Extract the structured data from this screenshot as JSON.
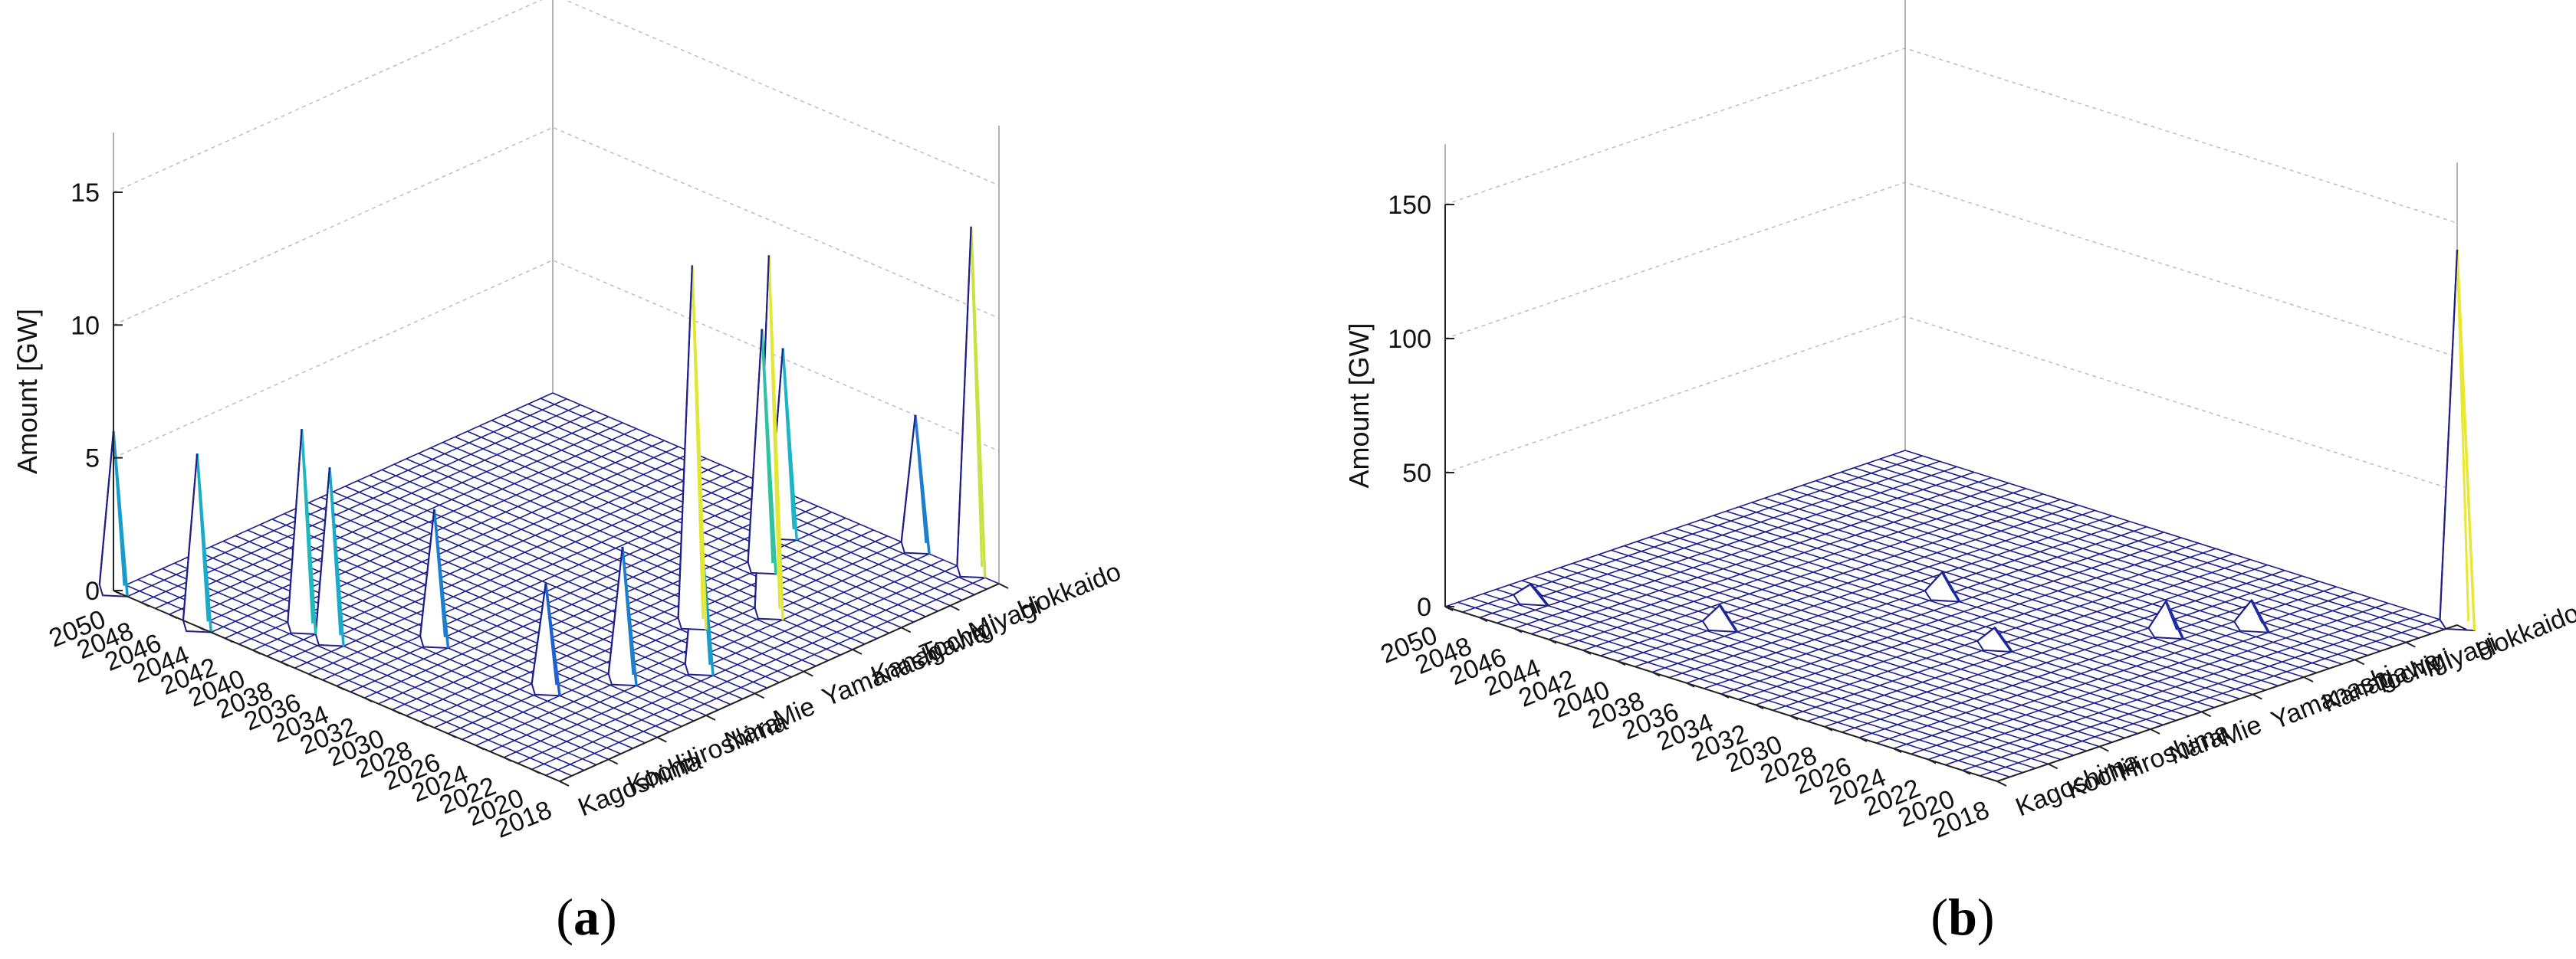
{
  "figure": {
    "panel_labels": [
      {
        "open": "(",
        "letter": "a",
        "close": ")"
      },
      {
        "open": "(",
        "letter": "b",
        "close": ")"
      }
    ]
  },
  "chart_data": [
    {
      "type": "surface3d",
      "panel": "a",
      "zlabel": "Amount [GW]",
      "zlim": [
        0,
        15
      ],
      "zticks": [
        0,
        5,
        10,
        15
      ],
      "x_ticks": [
        2018,
        2020,
        2022,
        2024,
        2026,
        2028,
        2030,
        2032,
        2034,
        2036,
        2038,
        2040,
        2042,
        2044,
        2046,
        2048,
        2050
      ],
      "y_ticks": [
        "Kagoshima",
        "Kochi",
        "Hiroshima",
        "Nara",
        "Mie",
        "Yamanashi",
        "Kanagawa",
        "Tochigi",
        "Miyagi",
        "Hokkaido"
      ],
      "grid": true,
      "colormap_colors": [
        "#1a1a8a",
        "#1f4fd0",
        "#19b4c8",
        "#3cc88c",
        "#e8e832"
      ],
      "peaks_estimated": [
        {
          "year": 2050,
          "region": "Kagoshima",
          "value": 6
        },
        {
          "year": 2044,
          "region": "Kagoshima",
          "value": 6.5
        },
        {
          "year": 2040,
          "region": "Kochi",
          "value": 7.5
        },
        {
          "year": 2038,
          "region": "Kochi",
          "value": 6.5
        },
        {
          "year": 2034,
          "region": "Hiroshima",
          "value": 5
        },
        {
          "year": 2026,
          "region": "Hiroshima",
          "value": 4
        },
        {
          "year": 2024,
          "region": "Nara",
          "value": 5
        },
        {
          "year": 2022,
          "region": "Mie",
          "value": 6
        },
        {
          "year": 2026,
          "region": "Yamanashi",
          "value": 13.5
        },
        {
          "year": 2024,
          "region": "Kanagawa",
          "value": 13.5
        },
        {
          "year": 2028,
          "region": "Tochigi",
          "value": 9
        },
        {
          "year": 2030,
          "region": "Miyagi",
          "value": 7
        },
        {
          "year": 2020,
          "region": "Hokkaido",
          "value": 13
        },
        {
          "year": 2024,
          "region": "Hokkaido",
          "value": 5
        }
      ]
    },
    {
      "type": "surface3d",
      "panel": "b",
      "zlabel": "Amount [GW]",
      "zlim": [
        0,
        150
      ],
      "zticks": [
        0,
        50,
        100,
        150
      ],
      "x_ticks": [
        2018,
        2020,
        2022,
        2024,
        2026,
        2028,
        2030,
        2032,
        2034,
        2036,
        2038,
        2040,
        2042,
        2044,
        2046,
        2048,
        2050
      ],
      "y_ticks": [
        "Kagoshima",
        "Kochi",
        "Hiroshima",
        "Nara",
        "Mie",
        "Yamanashi",
        "Kanagawa",
        "Tochigi",
        "Miyagi",
        "Hokkaido"
      ],
      "grid": true,
      "colormap_colors": [
        "#1a1a8a",
        "#1f4fd0",
        "#19b4c8",
        "#3cc88c",
        "#e8e832"
      ],
      "peaks_estimated": [
        {
          "year": 2018,
          "region": "Hokkaido",
          "value": 140
        },
        {
          "year": 2026,
          "region": "Kanagawa",
          "value": 12
        },
        {
          "year": 2024,
          "region": "Tochigi",
          "value": 10
        },
        {
          "year": 2040,
          "region": "Hiroshima",
          "value": 8
        },
        {
          "year": 2036,
          "region": "Yamanashi",
          "value": 9
        },
        {
          "year": 2048,
          "region": "Kochi",
          "value": 6
        },
        {
          "year": 2030,
          "region": "Mie",
          "value": 7
        }
      ]
    }
  ]
}
